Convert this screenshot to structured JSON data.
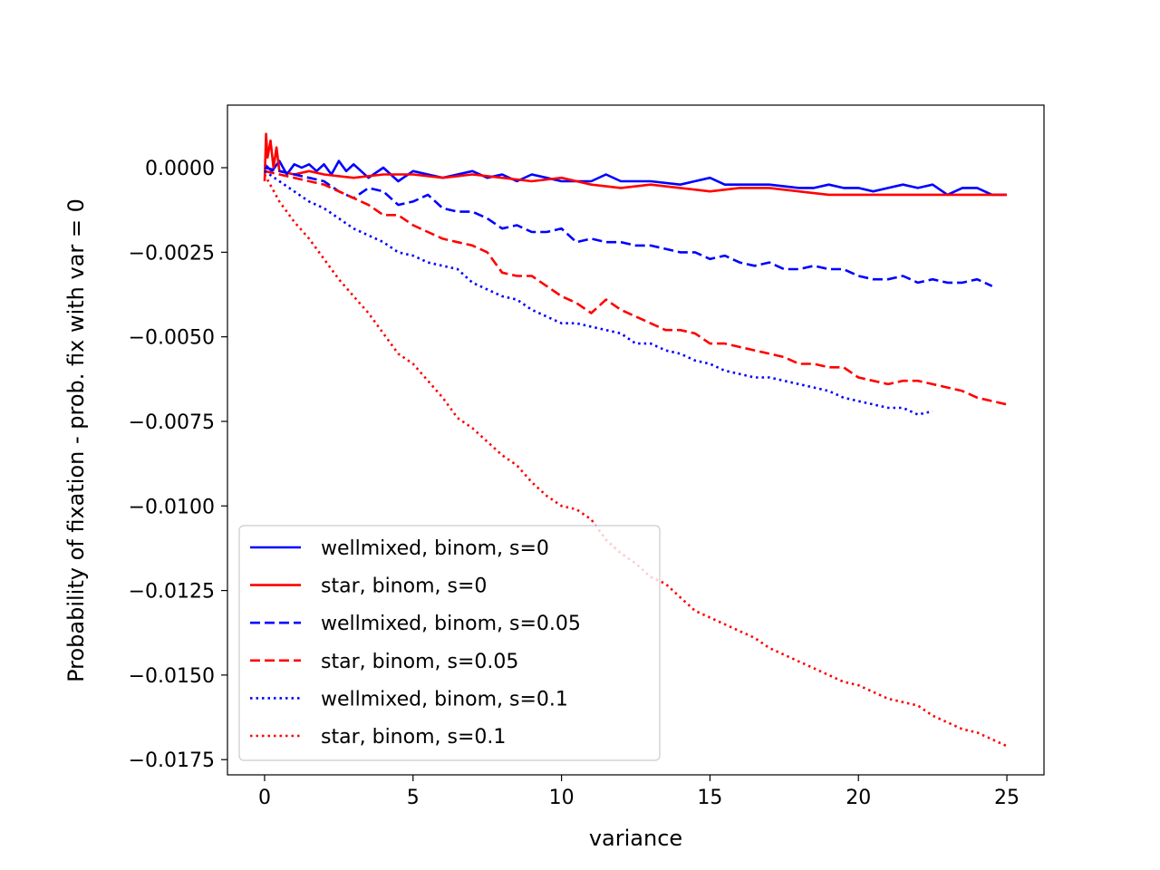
{
  "chart_data": {
    "type": "line",
    "title": "",
    "xlabel": "variance",
    "ylabel": "Probability of fixation - prob. fix with var = 0",
    "xlim": [
      -1.25,
      26.25
    ],
    "ylim": [
      -0.01795,
      0.00185
    ],
    "xticks": [
      0,
      5,
      10,
      15,
      20,
      25
    ],
    "xtick_labels": [
      "0",
      "5",
      "10",
      "15",
      "20",
      "25"
    ],
    "yticks": [
      0.0,
      -0.0025,
      -0.005,
      -0.0075,
      -0.01,
      -0.0125,
      -0.015,
      -0.0175
    ],
    "ytick_labels": [
      "0.0000",
      "−0.0025",
      "−0.0050",
      "−0.0075",
      "−0.0100",
      "−0.0125",
      "−0.0150",
      "−0.0175"
    ],
    "grid": false,
    "legend_position": "lower-left",
    "series": [
      {
        "name": "wellmixed, binom, s=0",
        "color": "#0000ff",
        "style": "solid",
        "x": [
          0,
          0.25,
          0.5,
          0.75,
          1,
          1.25,
          1.5,
          1.75,
          2,
          2.25,
          2.5,
          2.75,
          3,
          3.5,
          4,
          4.5,
          5,
          5.5,
          6,
          6.5,
          7,
          7.5,
          8,
          8.5,
          9,
          9.5,
          10,
          11,
          11.5,
          12,
          13,
          14,
          15,
          15.5,
          16,
          17,
          18,
          18.5,
          19,
          19.5,
          20,
          20.5,
          21,
          21.5,
          22,
          22.5,
          23,
          23.5,
          24,
          24.5,
          25
        ],
        "y": [
          0.0001,
          -0.0001,
          0.0002,
          -0.0002,
          0.0001,
          0.0,
          0.0001,
          -0.0001,
          0.0001,
          -0.0002,
          0.0002,
          -0.0001,
          0.0001,
          -0.0003,
          0.0,
          -0.0004,
          -0.0001,
          -0.0002,
          -0.0003,
          -0.0002,
          -0.0001,
          -0.0003,
          -0.0002,
          -0.0004,
          -0.0002,
          -0.0003,
          -0.0004,
          -0.0004,
          -0.0002,
          -0.0004,
          -0.0004,
          -0.0005,
          -0.0003,
          -0.0005,
          -0.0005,
          -0.0005,
          -0.0006,
          -0.0006,
          -0.0005,
          -0.0006,
          -0.0006,
          -0.0007,
          -0.0006,
          -0.0005,
          -0.0006,
          -0.0005,
          -0.0008,
          -0.0006,
          -0.0006,
          -0.0008,
          -0.0008
        ]
      },
      {
        "name": "star, binom, s=0",
        "color": "#ff0000",
        "style": "solid",
        "x": [
          0,
          0.05,
          0.1,
          0.2,
          0.3,
          0.4,
          0.5,
          1,
          1.5,
          2,
          3,
          4,
          5,
          6,
          7,
          8,
          9,
          10,
          11,
          12,
          13,
          14,
          15,
          16,
          17,
          18,
          19,
          20,
          21,
          22,
          23,
          24,
          25
        ],
        "y": [
          -0.0004,
          0.001,
          0.0003,
          0.0008,
          0.0,
          0.0006,
          -0.0001,
          -0.0002,
          -0.0001,
          -0.0002,
          -0.0003,
          -0.0002,
          -0.0002,
          -0.0003,
          -0.0002,
          -0.0003,
          -0.0004,
          -0.0003,
          -0.0005,
          -0.0006,
          -0.0005,
          -0.0006,
          -0.0007,
          -0.0006,
          -0.0006,
          -0.0007,
          -0.0008,
          -0.0008,
          -0.0008,
          -0.0008,
          -0.0008,
          -0.0008,
          -0.0008
        ]
      },
      {
        "name": "wellmixed, binom, s=0.05",
        "color": "#0000ff",
        "style": "dashed",
        "x": [
          0,
          0.5,
          1,
          1.5,
          2,
          2.5,
          3,
          3.5,
          4,
          4.5,
          5,
          5.5,
          6,
          6.5,
          7,
          7.5,
          8,
          8.5,
          9,
          9.5,
          10,
          10.5,
          11,
          11.5,
          12,
          12.5,
          13,
          13.5,
          14,
          14.5,
          15,
          15.5,
          16,
          16.5,
          17,
          17.5,
          18,
          18.5,
          19,
          19.5,
          20,
          20.5,
          21,
          21.5,
          22,
          22.5,
          23,
          23.5,
          24,
          24.5
        ],
        "y": [
          0.0,
          -0.0001,
          -0.0002,
          -0.0003,
          -0.0004,
          -0.0007,
          -0.0009,
          -0.0006,
          -0.0007,
          -0.0011,
          -0.001,
          -0.0008,
          -0.0012,
          -0.0013,
          -0.0013,
          -0.0015,
          -0.0018,
          -0.0017,
          -0.0019,
          -0.0019,
          -0.0018,
          -0.0022,
          -0.0021,
          -0.0022,
          -0.0022,
          -0.0023,
          -0.0023,
          -0.0024,
          -0.0025,
          -0.0025,
          -0.0027,
          -0.0026,
          -0.0028,
          -0.0029,
          -0.0028,
          -0.003,
          -0.003,
          -0.0029,
          -0.003,
          -0.003,
          -0.0032,
          -0.0033,
          -0.0033,
          -0.0032,
          -0.0034,
          -0.0033,
          -0.0034,
          -0.0034,
          -0.0033,
          -0.0035
        ]
      },
      {
        "name": "star, binom, s=0.05",
        "color": "#ff0000",
        "style": "dashed",
        "x": [
          0,
          0.5,
          1,
          1.5,
          2,
          2.5,
          3,
          3.5,
          4,
          4.5,
          5,
          5.5,
          6,
          6.5,
          7,
          7.5,
          8,
          8.5,
          9,
          9.5,
          10,
          10.5,
          11,
          11.5,
          12,
          12.5,
          13,
          13.5,
          14,
          14.5,
          15,
          15.5,
          16,
          16.5,
          17,
          17.5,
          18,
          18.5,
          19,
          19.5,
          20,
          20.5,
          21,
          21.5,
          22,
          22.5,
          23,
          23.5,
          24,
          24.5,
          25
        ],
        "y": [
          -0.0001,
          -0.0002,
          -0.0003,
          -0.0004,
          -0.0005,
          -0.0007,
          -0.0009,
          -0.0011,
          -0.0014,
          -0.0014,
          -0.0017,
          -0.0019,
          -0.0021,
          -0.0022,
          -0.0023,
          -0.0025,
          -0.0031,
          -0.0032,
          -0.0032,
          -0.0035,
          -0.0038,
          -0.004,
          -0.0043,
          -0.0039,
          -0.0042,
          -0.0044,
          -0.0046,
          -0.0048,
          -0.0048,
          -0.0049,
          -0.0052,
          -0.0052,
          -0.0053,
          -0.0054,
          -0.0055,
          -0.0056,
          -0.0058,
          -0.0058,
          -0.0059,
          -0.0059,
          -0.0062,
          -0.0063,
          -0.0064,
          -0.0063,
          -0.0063,
          -0.0064,
          -0.0065,
          -0.0066,
          -0.0068,
          -0.0069,
          -0.007
        ]
      },
      {
        "name": "wellmixed, binom, s=0.1",
        "color": "#0000ff",
        "style": "dotted",
        "x": [
          0,
          0.5,
          1,
          1.5,
          2,
          2.5,
          3,
          3.5,
          4,
          4.5,
          5,
          5.5,
          6,
          6.5,
          7,
          7.5,
          8,
          8.5,
          9,
          9.5,
          10,
          10.5,
          11,
          11.5,
          12,
          12.5,
          13,
          13.5,
          14,
          14.5,
          15,
          15.5,
          16,
          16.5,
          17,
          17.5,
          18,
          18.5,
          19,
          19.5,
          20,
          20.5,
          21,
          21.5,
          22,
          22.5
        ],
        "y": [
          -0.0001,
          -0.0004,
          -0.0007,
          -0.001,
          -0.0012,
          -0.0015,
          -0.0018,
          -0.002,
          -0.0022,
          -0.0025,
          -0.0026,
          -0.0028,
          -0.0029,
          -0.003,
          -0.0034,
          -0.0036,
          -0.0038,
          -0.0039,
          -0.0042,
          -0.0044,
          -0.0046,
          -0.0046,
          -0.0047,
          -0.0048,
          -0.0049,
          -0.0052,
          -0.0052,
          -0.0054,
          -0.0055,
          -0.0057,
          -0.0058,
          -0.006,
          -0.0061,
          -0.0062,
          -0.0062,
          -0.0063,
          -0.0064,
          -0.0065,
          -0.0066,
          -0.0068,
          -0.0069,
          -0.007,
          -0.0071,
          -0.0071,
          -0.0073,
          -0.0072
        ]
      },
      {
        "name": "star, binom, s=0.1",
        "color": "#ff0000",
        "style": "dotted",
        "x": [
          0,
          0.5,
          1,
          1.5,
          2,
          2.5,
          3,
          3.5,
          4,
          4.5,
          5,
          5.5,
          6,
          6.5,
          7,
          7.5,
          8,
          8.5,
          9,
          9.5,
          10,
          10.5,
          11,
          11.5,
          12,
          12.5,
          13,
          13.5,
          14,
          14.5,
          15,
          15.5,
          16,
          16.5,
          17,
          17.5,
          18,
          18.5,
          19,
          19.5,
          20,
          20.5,
          21,
          21.5,
          22,
          22.5,
          23,
          23.5,
          24,
          24.5,
          25
        ],
        "y": [
          -0.0002,
          -0.001,
          -0.0016,
          -0.0021,
          -0.0027,
          -0.0033,
          -0.0038,
          -0.0043,
          -0.0049,
          -0.0055,
          -0.0058,
          -0.0063,
          -0.0068,
          -0.0074,
          -0.0077,
          -0.0081,
          -0.0085,
          -0.0088,
          -0.0093,
          -0.0097,
          -0.01,
          -0.0101,
          -0.0104,
          -0.011,
          -0.0114,
          -0.0117,
          -0.0121,
          -0.0123,
          -0.0127,
          -0.0131,
          -0.0133,
          -0.0135,
          -0.0137,
          -0.0139,
          -0.0142,
          -0.0144,
          -0.0146,
          -0.0148,
          -0.015,
          -0.0152,
          -0.0153,
          -0.0155,
          -0.0157,
          -0.0158,
          -0.0159,
          -0.0162,
          -0.0164,
          -0.0166,
          -0.0167,
          -0.0169,
          -0.0171
        ]
      }
    ]
  }
}
